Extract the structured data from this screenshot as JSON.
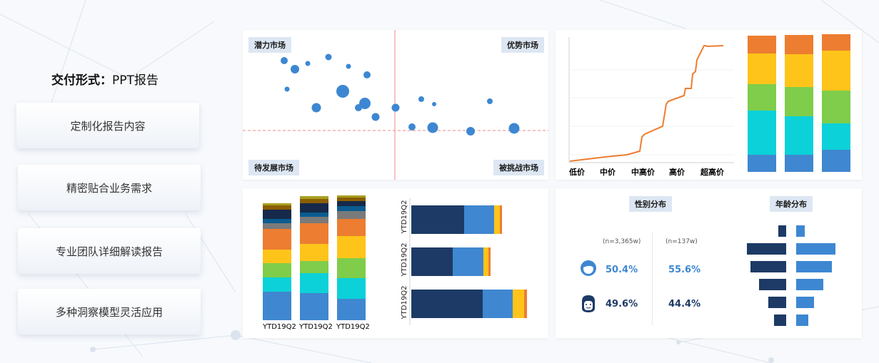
{
  "title": {
    "prefix": "交付形式：",
    "value": "PPT报告"
  },
  "features": [
    "定制化报告内容",
    "精密贴合业务需求",
    "专业团队详细解读报告",
    "多种洞察模型灵活应用"
  ],
  "quadrant": {
    "top_left": "潜力市场",
    "top_right": "优势市场",
    "bottom_left": "待发展市场",
    "bottom_right": "被挑战市场",
    "colors": {
      "point": "#3d87d2",
      "axis": "#ef8a8a"
    }
  },
  "price_chart": {
    "x_labels": [
      "低价",
      "中价",
      "中高价",
      "高价",
      "超高价"
    ],
    "line_color": "#ed7d31"
  },
  "stack_colors": [
    "#3f87d0",
    "#0cd1d8",
    "#7fcd4a",
    "#ffc41a",
    "#ed7d31"
  ],
  "stack_dark_colors": [
    "#1d3a66",
    "#0b5c8f",
    "#7a7a7a",
    "#16294a",
    "#8b5e00",
    "#a7a020"
  ],
  "small_bars": {
    "labels": [
      "YTD19Q2",
      "YTD19Q2",
      "YTD19Q2"
    ]
  },
  "horizontal_bars": {
    "labels": [
      "YTD19Q2",
      "YTD19Q2",
      "YTD19Q2"
    ]
  },
  "demographics": {
    "gender_title": "性别分布",
    "age_title": "年龄分布",
    "col1_n": "(n=3,365w)",
    "col2_n": "(n=137w)",
    "female": [
      "50.4%",
      "55.6%"
    ],
    "male": [
      "49.6%",
      "44.4%"
    ]
  }
}
